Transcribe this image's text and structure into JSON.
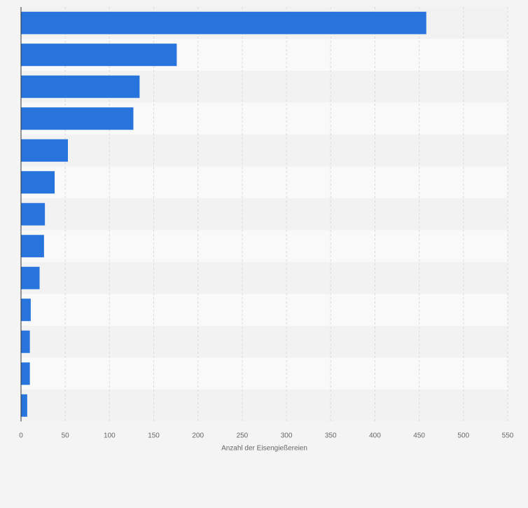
{
  "chart_data": {
    "type": "bar",
    "orientation": "horizontal",
    "title": "",
    "xlabel": "Anzahl der Eisengießereien",
    "ylabel": "",
    "categories": [
      "",
      "",
      "",
      "",
      "",
      "",
      "",
      "",
      "",
      "",
      "",
      "",
      ""
    ],
    "values": [
      458,
      176,
      134,
      127,
      53,
      38,
      27,
      26,
      21,
      11,
      10,
      10,
      7
    ],
    "xlim": [
      0,
      550
    ],
    "xticks": [
      0,
      50,
      100,
      150,
      200,
      250,
      300,
      350,
      400,
      450,
      500,
      550
    ],
    "grid": true,
    "legend": "none",
    "colors": {
      "bar": "#2775dc",
      "band_light": "#f9f9f9",
      "band_dark": "#f2f2f2",
      "grid": "#d9d9d9",
      "axis": "#333333",
      "tick_text": "#666666"
    }
  }
}
